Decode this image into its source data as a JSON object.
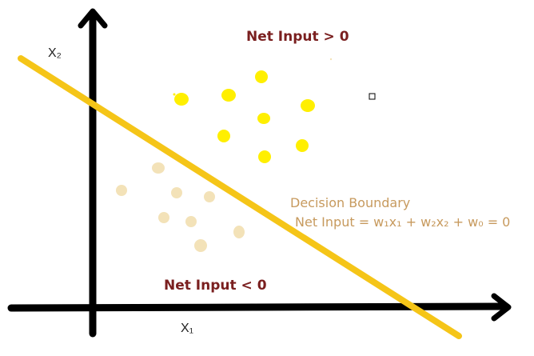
{
  "colors": {
    "axis": "#000000",
    "boundary": "#f5c518",
    "positive_point": "#ffef00",
    "negative_point": "#f3e2b8",
    "region_text": "#7a1f1f",
    "boundary_text": "#c79a5e"
  },
  "labels": {
    "region_positive": "Net Input > 0",
    "region_negative": "Net Input < 0",
    "x_axis": "X₁",
    "y_axis": "X₂",
    "boundary_title": "Decision Boundary",
    "boundary_equation": "Net Input = w₁x₁ + w₂x₂ + w₀ = 0"
  }
}
